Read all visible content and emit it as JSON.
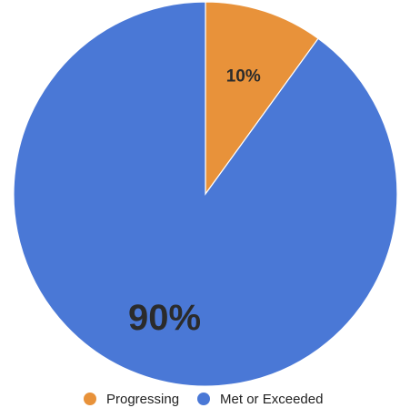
{
  "chart_data": {
    "type": "pie",
    "title": "",
    "slices": [
      {
        "label": "Progressing",
        "value": 10,
        "display": "10%",
        "color": "#E8923A"
      },
      {
        "label": "Met or Exceeded",
        "value": 90,
        "display": "90%",
        "color": "#4A78D6"
      }
    ],
    "start_angle_deg": 0,
    "direction": "clockwise",
    "legend_position": "bottom"
  }
}
